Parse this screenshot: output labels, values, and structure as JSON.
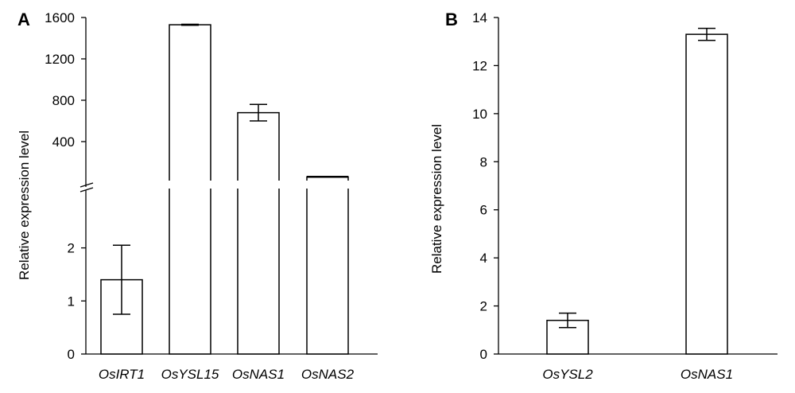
{
  "chart_data": [
    {
      "type": "bar",
      "panel_label": "A",
      "ylabel": "Relative expression level",
      "broken_axis": true,
      "categories": [
        "OsIRT1",
        "OsYSL15",
        "OsNAS1",
        "OsNAS2"
      ],
      "values": [
        1.4,
        1530,
        680,
        60
      ],
      "error": [
        0.65,
        5,
        80,
        5
      ],
      "lower_segment": {
        "ylim": [
          0,
          3
        ],
        "ticks": [
          "0",
          "1",
          "2"
        ]
      },
      "upper_segment": {
        "ylim": [
          0,
          1600
        ],
        "ticks": [
          "400",
          "800",
          "1200",
          "1600"
        ]
      }
    },
    {
      "type": "bar",
      "panel_label": "B",
      "ylabel": "Relative expression level",
      "categories": [
        "OsYSL2",
        "OsNAS1"
      ],
      "values": [
        1.4,
        13.3
      ],
      "error": [
        0.3,
        0.25
      ],
      "ylim": [
        0,
        14
      ],
      "ticks": [
        "0",
        "2",
        "4",
        "6",
        "8",
        "10",
        "12",
        "14"
      ]
    }
  ],
  "colors": {
    "bar_fill": "#ffffff",
    "stroke": "#000000"
  }
}
